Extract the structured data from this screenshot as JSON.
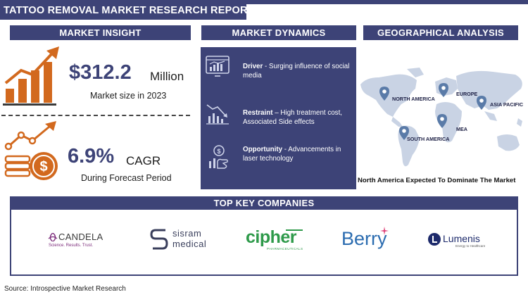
{
  "title": "TATTOO REMOVAL MARKET RESEARCH REPORT",
  "sections": {
    "insight": "MARKET INSIGHT",
    "dynamics": "MARKET DYNAMICS",
    "geo": "GEOGRAPHICAL ANALYSIS",
    "companies": "TOP KEY COMPANIES"
  },
  "insight": {
    "market_size_value": "$312.2",
    "market_size_unit": "Million",
    "market_size_caption": "Market size in 2023",
    "cagr_value": "6.9%",
    "cagr_unit": "CAGR",
    "cagr_caption": "During Forecast Period"
  },
  "dynamics": [
    {
      "label": "Driver",
      "text": " - Surging influence of social media",
      "icon": "monitor-chart-icon"
    },
    {
      "label": "Restraint",
      "text": " – High treatment cost, Associated Side effects",
      "icon": "declining-chart-icon"
    },
    {
      "label": "Opportunity",
      "text": " - Advancements in laser technology",
      "icon": "growth-hand-icon"
    }
  ],
  "geo": {
    "regions": [
      "NORTH AMERICA",
      "EUROPE",
      "ASIA PACIFIC",
      "SOUTH AMERICA",
      "MEA"
    ],
    "note": "North America Expected To Dominate The Market"
  },
  "companies": [
    {
      "name": "CANDELA",
      "tagline": "Science. Results. Trust."
    },
    {
      "name": "sisram",
      "line2": "medical"
    },
    {
      "name": "cipher",
      "tagline": "PHARMACEUTICALS"
    },
    {
      "name": "Berry"
    },
    {
      "name": "Lumenis",
      "tagline": "Energy to Healthcare"
    }
  ],
  "source": "Source: Introspective Market Research",
  "colors": {
    "navy": "#3d4377",
    "orange": "#d2691e",
    "map": "#c9d3e4",
    "pin": "#5a7ba8",
    "cipher_green": "#2e9a4a",
    "berry_blue": "#2b6cb0",
    "candela_purple": "#7b2a7a"
  }
}
